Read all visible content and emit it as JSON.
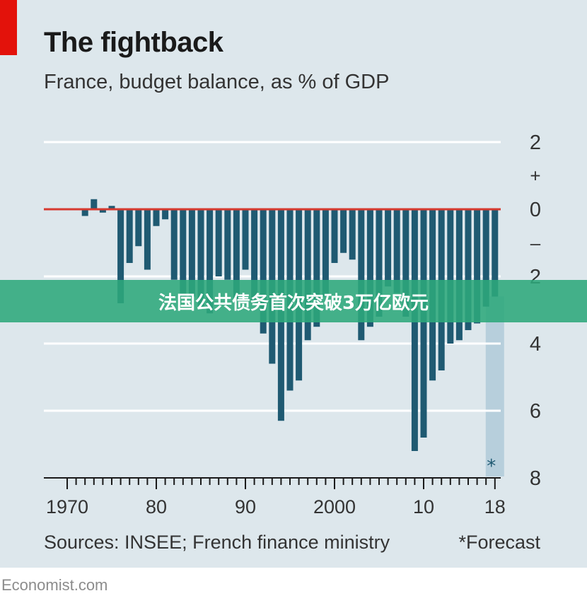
{
  "header": {
    "title": "The fightback",
    "subtitle": "France, budget balance, as % of GDP"
  },
  "footer": {
    "sources": "Sources: INSEE; French finance ministry",
    "forecast_note": "*Forecast",
    "brand": "Economist.com"
  },
  "banner": {
    "text": "法国公共债务首次突破3万亿欧元"
  },
  "colors": {
    "bar": "#1f5a72",
    "zero_line": "#d63a2f",
    "forecast_band": "#b7cfdc",
    "background": "#dde7ec",
    "banner": "#2ea87b"
  },
  "chart_data": {
    "type": "bar",
    "title": "The fightback",
    "subtitle": "France, budget balance, as % of GDP",
    "xlabel": "",
    "ylabel": "% of GDP",
    "x": [
      1972,
      1973,
      1974,
      1975,
      1976,
      1977,
      1978,
      1979,
      1980,
      1981,
      1982,
      1983,
      1984,
      1985,
      1986,
      1987,
      1988,
      1989,
      1990,
      1991,
      1992,
      1993,
      1994,
      1995,
      1996,
      1997,
      1998,
      1999,
      2000,
      2001,
      2002,
      2003,
      2004,
      2005,
      2006,
      2007,
      2008,
      2009,
      2010,
      2011,
      2012,
      2013,
      2014,
      2015,
      2016,
      2017,
      2018
    ],
    "values": [
      -0.2,
      0.3,
      -0.1,
      0.1,
      -2.8,
      -1.6,
      -1.1,
      -1.8,
      -0.5,
      -0.3,
      -2.1,
      -2.6,
      -2.6,
      -2.9,
      -3.1,
      -2.0,
      -2.1,
      -2.7,
      -1.8,
      -2.7,
      -3.7,
      -4.6,
      -6.3,
      -5.4,
      -5.1,
      -3.9,
      -3.5,
      -2.6,
      -1.6,
      -1.3,
      -1.5,
      -3.9,
      -3.5,
      -3.2,
      -2.3,
      -2.5,
      -3.2,
      -7.2,
      -6.8,
      -5.1,
      -4.8,
      -4.0,
      -3.9,
      -3.6,
      -3.4,
      -2.9,
      -2.6
    ],
    "forecast": [
      2018
    ],
    "ylim": [
      -8,
      2
    ],
    "y_ticks": [
      2,
      0,
      -2,
      -4,
      -6,
      -8
    ],
    "y_tick_labels": [
      "2",
      "0",
      "2",
      "4",
      "6",
      "8"
    ],
    "y_sign_labels": [
      "+",
      "–"
    ],
    "x_tick_labels": [
      {
        "year": 1970,
        "label": "1970"
      },
      {
        "year": 1980,
        "label": "80"
      },
      {
        "year": 1990,
        "label": "90"
      },
      {
        "year": 2000,
        "label": "2000"
      },
      {
        "year": 2010,
        "label": "10"
      },
      {
        "year": 2018,
        "label": "18"
      }
    ],
    "x_range": [
      1970,
      2018
    ],
    "forecast_marker": "*",
    "grid": true,
    "zero_line": true
  }
}
